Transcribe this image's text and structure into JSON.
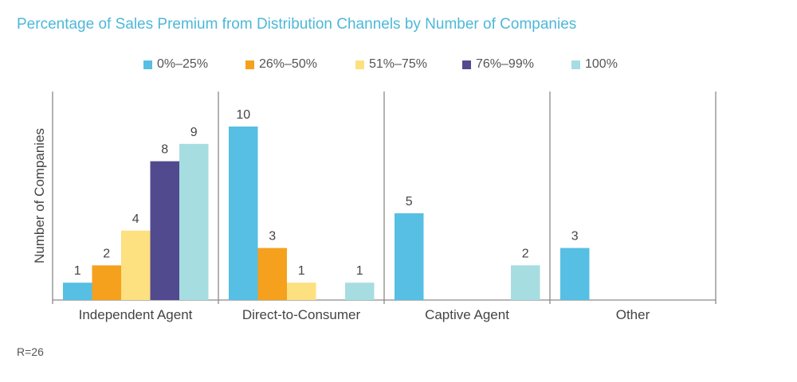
{
  "chart_data": {
    "type": "bar",
    "title": "Percentage of Sales Premium from Distribution Channels by Number of Companies",
    "xlabel": "",
    "ylabel": "Number of Companies",
    "categories": [
      "Independent Agent",
      "Direct-to-Consumer",
      "Captive Agent",
      "Other"
    ],
    "series": [
      {
        "name": "0%–25%",
        "color": "#56bfe3",
        "values": [
          1,
          10,
          5,
          3
        ]
      },
      {
        "name": "26%–50%",
        "color": "#f5a11e",
        "values": [
          2,
          3,
          null,
          null
        ]
      },
      {
        "name": "51%–75%",
        "color": "#fde07f",
        "values": [
          4,
          1,
          null,
          null
        ]
      },
      {
        "name": "76%–99%",
        "color": "#514a8e",
        "values": [
          8,
          null,
          null,
          null
        ]
      },
      {
        "name": "100%",
        "color": "#a6dde1",
        "values": [
          9,
          1,
          2,
          null
        ]
      }
    ],
    "ylim": [
      0,
      11
    ],
    "grid": false,
    "legend_position": "top",
    "footnote": "R=26"
  }
}
